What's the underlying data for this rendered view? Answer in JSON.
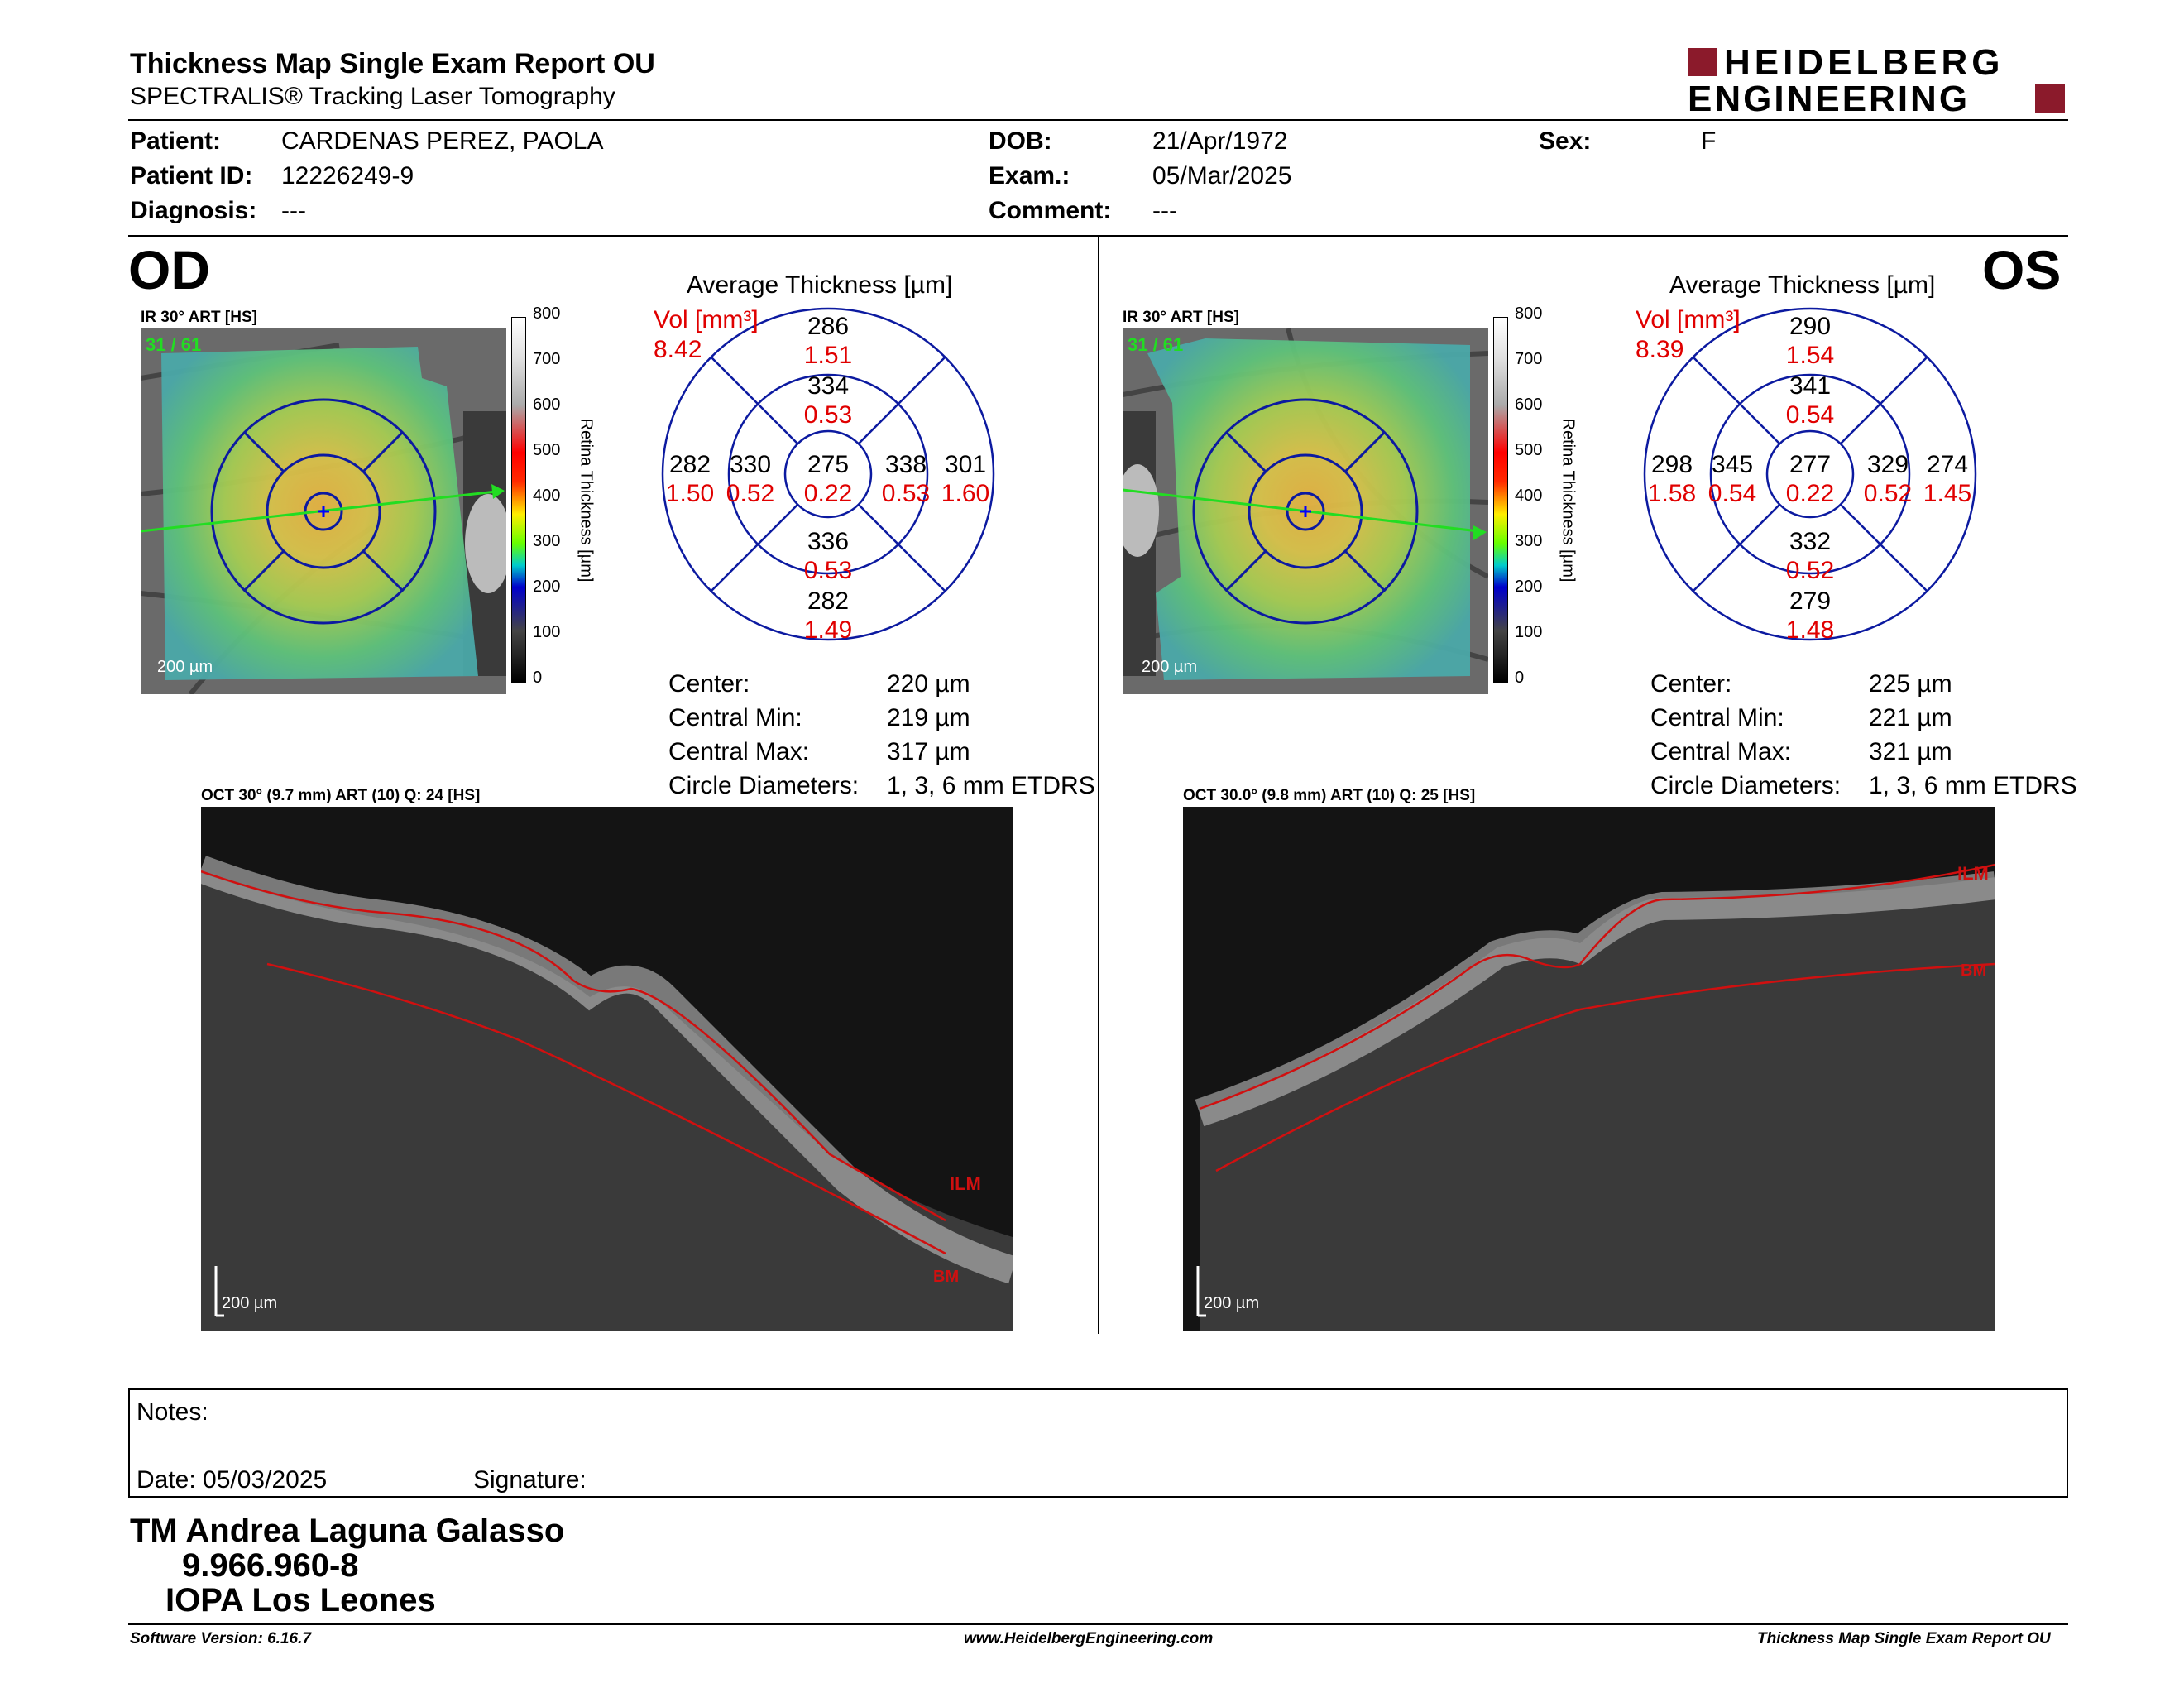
{
  "header": {
    "title": "Thickness Map Single Exam Report OU",
    "subtitle": "SPECTRALIS® Tracking Laser Tomography",
    "logo_line1": "HEIDELBERG",
    "logo_line2": "ENGINEERING",
    "brand_color": "#8b1a2b"
  },
  "patient": {
    "patient_label": "Patient:",
    "patient_value": "CARDENAS PEREZ, PAOLA",
    "id_label": "Patient ID:",
    "id_value": "12226249-9",
    "diagnosis_label": "Diagnosis:",
    "diagnosis_value": "---",
    "dob_label": "DOB:",
    "dob_value": "21/Apr/1972",
    "exam_label": "Exam.:",
    "exam_value": "05/Mar/2025",
    "comment_label": "Comment:",
    "comment_value": "---",
    "sex_label": "Sex:",
    "sex_value": "F"
  },
  "colorbar": {
    "ticks": [
      "800",
      "700",
      "600",
      "500",
      "400",
      "300",
      "200",
      "100",
      "0"
    ],
    "label": "Retina Thickness [µm]"
  },
  "od": {
    "eye": "OD",
    "ir_label": "IR 30° ART [HS]",
    "frames": "31 / 61",
    "scale": "200 µm",
    "avg_title": "Average Thickness [µm]",
    "vol_label": "Vol [mm³]",
    "vol_total": "8.42",
    "sectors": {
      "center": {
        "t": "275",
        "v": "0.22"
      },
      "inner_sup": {
        "t": "334",
        "v": "0.53"
      },
      "inner_inf": {
        "t": "336",
        "v": "0.53"
      },
      "inner_left": {
        "t": "330",
        "v": "0.52"
      },
      "inner_right": {
        "t": "338",
        "v": "0.53"
      },
      "outer_sup": {
        "t": "286",
        "v": "1.51"
      },
      "outer_inf": {
        "t": "282",
        "v": "1.49"
      },
      "outer_left": {
        "t": "282",
        "v": "1.50"
      },
      "outer_right": {
        "t": "301",
        "v": "1.60"
      }
    },
    "stats": {
      "center_label": "Center:",
      "center_value": "220 µm",
      "min_label": "Central Min:",
      "min_value": "219 µm",
      "max_label": "Central Max:",
      "max_value": "317 µm",
      "diam_label": "Circle Diameters:",
      "diam_value": "1, 3, 6 mm ETDRS"
    },
    "oct_label": "OCT 30° (9.7 mm) ART (10) Q: 24 [HS]",
    "ilm": "ILM",
    "bm": "BM",
    "oct_scale": "200 µm"
  },
  "os": {
    "eye": "OS",
    "ir_label": "IR 30° ART [HS]",
    "frames": "31 / 61",
    "scale": "200 µm",
    "avg_title": "Average Thickness [µm]",
    "vol_label": "Vol [mm³]",
    "vol_total": "8.39",
    "sectors": {
      "center": {
        "t": "277",
        "v": "0.22"
      },
      "inner_sup": {
        "t": "341",
        "v": "0.54"
      },
      "inner_inf": {
        "t": "332",
        "v": "0.52"
      },
      "inner_left": {
        "t": "345",
        "v": "0.54"
      },
      "inner_right": {
        "t": "329",
        "v": "0.52"
      },
      "outer_sup": {
        "t": "290",
        "v": "1.54"
      },
      "outer_inf": {
        "t": "279",
        "v": "1.48"
      },
      "outer_left": {
        "t": "298",
        "v": "1.58"
      },
      "outer_right": {
        "t": "274",
        "v": "1.45"
      }
    },
    "stats": {
      "center_label": "Center:",
      "center_value": "225 µm",
      "min_label": "Central Min:",
      "min_value": "221 µm",
      "max_label": "Central Max:",
      "max_value": "321 µm",
      "diam_label": "Circle Diameters:",
      "diam_value": "1, 3, 6 mm ETDRS"
    },
    "oct_label": "OCT 30.0° (9.8 mm) ART (10) Q: 25 [HS]",
    "ilm": "ILM",
    "bm": "BM",
    "oct_scale": "200 µm"
  },
  "notes": {
    "notes_label": "Notes:",
    "date_label": "Date: 05/03/2025",
    "signature_label": "Signature:"
  },
  "signer": {
    "line1": "TM Andrea Laguna Galasso",
    "line2": "9.966.960-8",
    "line3": "IOPA Los Leones"
  },
  "footer": {
    "version": "Software Version: 6.16.7",
    "url": "www.HeidelbergEngineering.com",
    "report": "Thickness Map Single Exam Report OU"
  }
}
